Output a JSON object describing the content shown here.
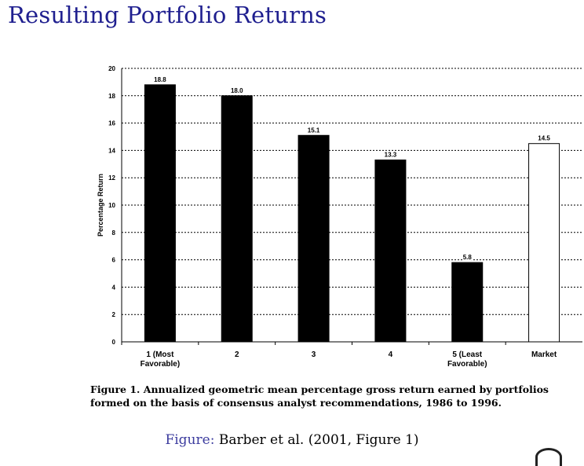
{
  "slide": {
    "title": "Resulting Portfolio Returns",
    "caption_line1": "Figure 1. Annualized geometric mean percentage gross return earned by portfolios",
    "caption_line2": "formed on the basis of consensus analyst recommendations, 1986 to 1996.",
    "source_label": "Figure:",
    "source_text": " Barber et al. (2001, Figure 1)"
  },
  "colors": {
    "title": "#1f1f8f",
    "source_label": "#3b3b9e",
    "bar_fill": "#000000",
    "market_bar_fill": "#ffffff"
  },
  "chart_data": {
    "type": "bar",
    "categories": [
      [
        "1 (Most",
        "Favorable)"
      ],
      [
        "2"
      ],
      [
        "3"
      ],
      [
        "4"
      ],
      [
        "5 (Least",
        "Favorable)"
      ],
      [
        "Market"
      ]
    ],
    "values": [
      18.8,
      18.0,
      15.1,
      13.3,
      5.8,
      14.5
    ],
    "data_labels": [
      "18.8",
      "18.0",
      "15.1",
      "13.3",
      "5.8",
      "14.5"
    ],
    "bar_styles": [
      "solid",
      "solid",
      "solid",
      "solid",
      "solid",
      "hollow"
    ],
    "title": "",
    "xlabel": "",
    "ylabel": "Percentage Return",
    "ylim": [
      0,
      20
    ],
    "yticks": [
      0,
      2,
      4,
      6,
      8,
      10,
      12,
      14,
      16,
      18,
      20
    ],
    "grid": "horizontal dotted"
  }
}
